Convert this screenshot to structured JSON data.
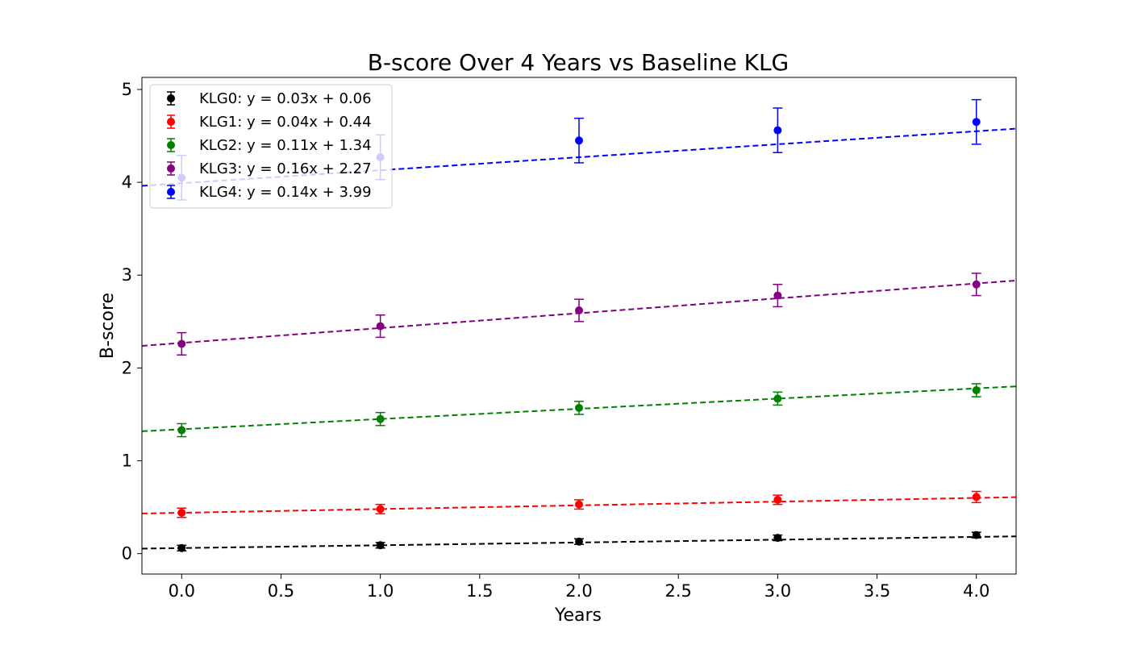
{
  "chart_data": {
    "type": "scatter",
    "title": "B-score Over 4 Years vs Baseline KLG",
    "xlabel": "Years",
    "ylabel": "B-score",
    "xlim": [
      -0.2,
      4.2
    ],
    "ylim": [
      -0.22,
      5.13
    ],
    "xticks": [
      0.0,
      0.5,
      1.0,
      1.5,
      2.0,
      2.5,
      3.0,
      3.5,
      4.0
    ],
    "xtick_labels": [
      "0.0",
      "0.5",
      "1.0",
      "1.5",
      "2.0",
      "2.5",
      "3.0",
      "3.5",
      "4.0"
    ],
    "yticks": [
      0,
      1,
      2,
      3,
      4,
      5
    ],
    "ytick_labels": [
      "0",
      "1",
      "2",
      "3",
      "4",
      "5"
    ],
    "grid": false,
    "legend_position": "top-left",
    "x": [
      0,
      1,
      2,
      3,
      4
    ],
    "series": [
      {
        "name": "KLG0",
        "label": "KLG0: y = 0.03x + 0.06",
        "color": "#000000",
        "values": [
          0.06,
          0.09,
          0.13,
          0.17,
          0.2
        ],
        "errors": [
          0.03,
          0.03,
          0.03,
          0.03,
          0.03
        ],
        "fit": {
          "slope": 0.03,
          "intercept": 0.06
        }
      },
      {
        "name": "KLG1",
        "label": "KLG1: y = 0.04x + 0.44",
        "color": "#ff0000",
        "values": [
          0.44,
          0.48,
          0.53,
          0.58,
          0.61
        ],
        "errors": [
          0.05,
          0.05,
          0.05,
          0.05,
          0.06
        ],
        "fit": {
          "slope": 0.04,
          "intercept": 0.44
        }
      },
      {
        "name": "KLG2",
        "label": "KLG2: y = 0.11x + 1.34",
        "color": "#008000",
        "values": [
          1.33,
          1.45,
          1.57,
          1.67,
          1.76
        ],
        "errors": [
          0.07,
          0.07,
          0.07,
          0.07,
          0.07
        ],
        "fit": {
          "slope": 0.11,
          "intercept": 1.34
        }
      },
      {
        "name": "KLG3",
        "label": "KLG3: y = 0.16x + 2.27",
        "color": "#800080",
        "values": [
          2.26,
          2.45,
          2.62,
          2.78,
          2.9
        ],
        "errors": [
          0.12,
          0.12,
          0.12,
          0.12,
          0.12
        ],
        "fit": {
          "slope": 0.16,
          "intercept": 2.27
        }
      },
      {
        "name": "KLG4",
        "label": "KLG4: y = 0.14x + 3.99",
        "color": "#0000ff",
        "values": [
          4.05,
          4.27,
          4.45,
          4.56,
          4.65
        ],
        "errors": [
          0.24,
          0.24,
          0.24,
          0.24,
          0.24
        ],
        "fit": {
          "slope": 0.14,
          "intercept": 3.99
        }
      }
    ]
  }
}
